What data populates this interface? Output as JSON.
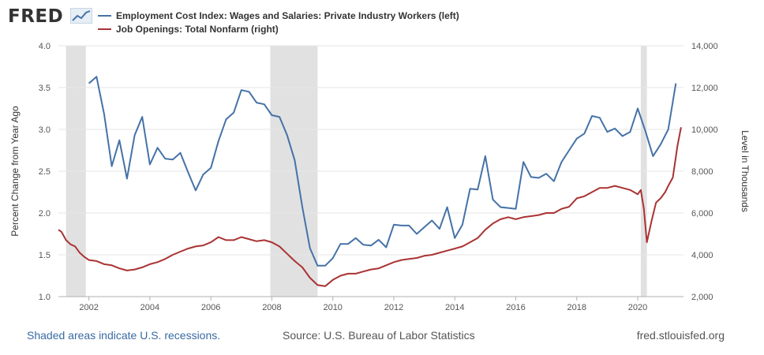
{
  "header": {
    "logo_text": "FRED",
    "logo_icon": "line-chart-icon"
  },
  "colors": {
    "series1": "#4572a7",
    "series2": "#aa3333",
    "recession": "#e1e1e1",
    "grid": "#e6e6e6"
  },
  "footer": {
    "note": "Shaded areas indicate U.S. recessions.",
    "source": "Source: U.S. Bureau of Labor Statistics",
    "site": "fred.stlouisfed.org"
  },
  "chart_data": {
    "type": "line",
    "ylabel_left": "Percent Change from Year Ago",
    "ylabel_right": "Level in Thousands",
    "ylim_left": [
      1.0,
      4.0
    ],
    "ylim_right": [
      2000,
      14000
    ],
    "xlim": [
      2001.0,
      2021.5
    ],
    "grid": "horizontal",
    "legend_position": "top-left",
    "x_ticks": [
      {
        "label": "2002",
        "value": 2002
      },
      {
        "label": "2004",
        "value": 2004
      },
      {
        "label": "2006",
        "value": 2006
      },
      {
        "label": "2008",
        "value": 2008
      },
      {
        "label": "2010",
        "value": 2010
      },
      {
        "label": "2012",
        "value": 2012
      },
      {
        "label": "2014",
        "value": 2014
      },
      {
        "label": "2016",
        "value": 2016
      },
      {
        "label": "2018",
        "value": 2018
      },
      {
        "label": "2020",
        "value": 2020
      }
    ],
    "y_ticks_left": [
      "1.0",
      "1.5",
      "2.0",
      "2.5",
      "3.0",
      "3.5",
      "4.0"
    ],
    "y_ticks_right": [
      "2,000",
      "4,000",
      "6,000",
      "8,000",
      "10,000",
      "12,000",
      "14,000"
    ],
    "recessions": [
      [
        2001.25,
        2001.9
      ],
      [
        2007.95,
        2009.5
      ],
      [
        2020.1,
        2020.3
      ]
    ],
    "series": [
      {
        "name": "Employment Cost Index: Wages and Salaries: Private Industry Workers (left)",
        "axis": "left",
        "x": [
          2002.0,
          2002.25,
          2002.5,
          2002.75,
          2003.0,
          2003.25,
          2003.5,
          2003.75,
          2004.0,
          2004.25,
          2004.5,
          2004.75,
          2005.0,
          2005.25,
          2005.5,
          2005.75,
          2006.0,
          2006.25,
          2006.5,
          2006.75,
          2007.0,
          2007.25,
          2007.5,
          2007.75,
          2008.0,
          2008.25,
          2008.5,
          2008.75,
          2009.0,
          2009.25,
          2009.5,
          2009.75,
          2010.0,
          2010.25,
          2010.5,
          2010.75,
          2011.0,
          2011.25,
          2011.5,
          2011.75,
          2012.0,
          2012.25,
          2012.5,
          2012.75,
          2013.0,
          2013.25,
          2013.5,
          2013.75,
          2014.0,
          2014.25,
          2014.5,
          2014.75,
          2015.0,
          2015.25,
          2015.5,
          2015.75,
          2016.0,
          2016.25,
          2016.5,
          2016.75,
          2017.0,
          2017.25,
          2017.5,
          2017.75,
          2018.0,
          2018.25,
          2018.5,
          2018.75,
          2019.0,
          2019.25,
          2019.5,
          2019.75,
          2020.0,
          2020.25,
          2020.5,
          2020.75,
          2021.0,
          2021.25
        ],
        "values": [
          3.55,
          3.63,
          3.18,
          2.56,
          2.87,
          2.41,
          2.93,
          3.15,
          2.58,
          2.78,
          2.65,
          2.64,
          2.72,
          2.49,
          2.27,
          2.46,
          2.54,
          2.86,
          3.12,
          3.2,
          3.47,
          3.45,
          3.32,
          3.3,
          3.17,
          3.15,
          2.93,
          2.63,
          2.07,
          1.58,
          1.37,
          1.37,
          1.46,
          1.63,
          1.63,
          1.7,
          1.62,
          1.61,
          1.68,
          1.59,
          1.86,
          1.85,
          1.85,
          1.75,
          1.83,
          1.91,
          1.81,
          2.07,
          1.7,
          1.86,
          2.29,
          2.28,
          2.68,
          2.16,
          2.07,
          2.06,
          2.05,
          2.61,
          2.43,
          2.42,
          2.47,
          2.38,
          2.61,
          2.75,
          2.89,
          2.95,
          3.16,
          3.14,
          2.97,
          3.01,
          2.92,
          2.97,
          3.25,
          2.98,
          2.68,
          2.82,
          3.0,
          3.55
        ]
      },
      {
        "name": "Job Openings: Total Nonfarm (right)",
        "axis": "right",
        "x": [
          2001.0,
          2001.1,
          2001.25,
          2001.4,
          2001.55,
          2001.7,
          2001.85,
          2002.0,
          2002.25,
          2002.5,
          2002.75,
          2003.0,
          2003.25,
          2003.5,
          2003.75,
          2004.0,
          2004.25,
          2004.5,
          2004.75,
          2005.0,
          2005.25,
          2005.5,
          2005.75,
          2006.0,
          2006.25,
          2006.5,
          2006.75,
          2007.0,
          2007.25,
          2007.5,
          2007.75,
          2008.0,
          2008.25,
          2008.5,
          2008.75,
          2009.0,
          2009.25,
          2009.5,
          2009.75,
          2010.0,
          2010.25,
          2010.5,
          2010.75,
          2011.0,
          2011.25,
          2011.5,
          2011.75,
          2012.0,
          2012.25,
          2012.5,
          2012.75,
          2013.0,
          2013.25,
          2013.5,
          2013.75,
          2014.0,
          2014.25,
          2014.5,
          2014.75,
          2015.0,
          2015.25,
          2015.5,
          2015.75,
          2016.0,
          2016.25,
          2016.5,
          2016.75,
          2017.0,
          2017.25,
          2017.5,
          2017.75,
          2018.0,
          2018.25,
          2018.5,
          2018.75,
          2019.0,
          2019.25,
          2019.5,
          2019.75,
          2020.0,
          2020.1,
          2020.2,
          2020.3,
          2020.45,
          2020.6,
          2020.75,
          2020.9,
          2021.0,
          2021.15,
          2021.3,
          2021.42
        ],
        "values": [
          5200,
          5100,
          4700,
          4500,
          4400,
          4100,
          3900,
          3750,
          3700,
          3550,
          3500,
          3350,
          3250,
          3300,
          3400,
          3550,
          3650,
          3800,
          4000,
          4150,
          4300,
          4400,
          4450,
          4600,
          4850,
          4700,
          4700,
          4850,
          4750,
          4650,
          4700,
          4600,
          4400,
          4050,
          3700,
          3400,
          2900,
          2550,
          2500,
          2800,
          3000,
          3100,
          3100,
          3200,
          3300,
          3350,
          3500,
          3650,
          3750,
          3800,
          3850,
          3950,
          4000,
          4100,
          4200,
          4300,
          4400,
          4600,
          4800,
          5200,
          5500,
          5700,
          5800,
          5700,
          5800,
          5850,
          5900,
          6000,
          6000,
          6200,
          6300,
          6700,
          6800,
          7000,
          7200,
          7200,
          7300,
          7200,
          7100,
          6900,
          7100,
          6200,
          4600,
          5600,
          6500,
          6700,
          7000,
          7300,
          7700,
          9200,
          10100
        ]
      }
    ]
  }
}
